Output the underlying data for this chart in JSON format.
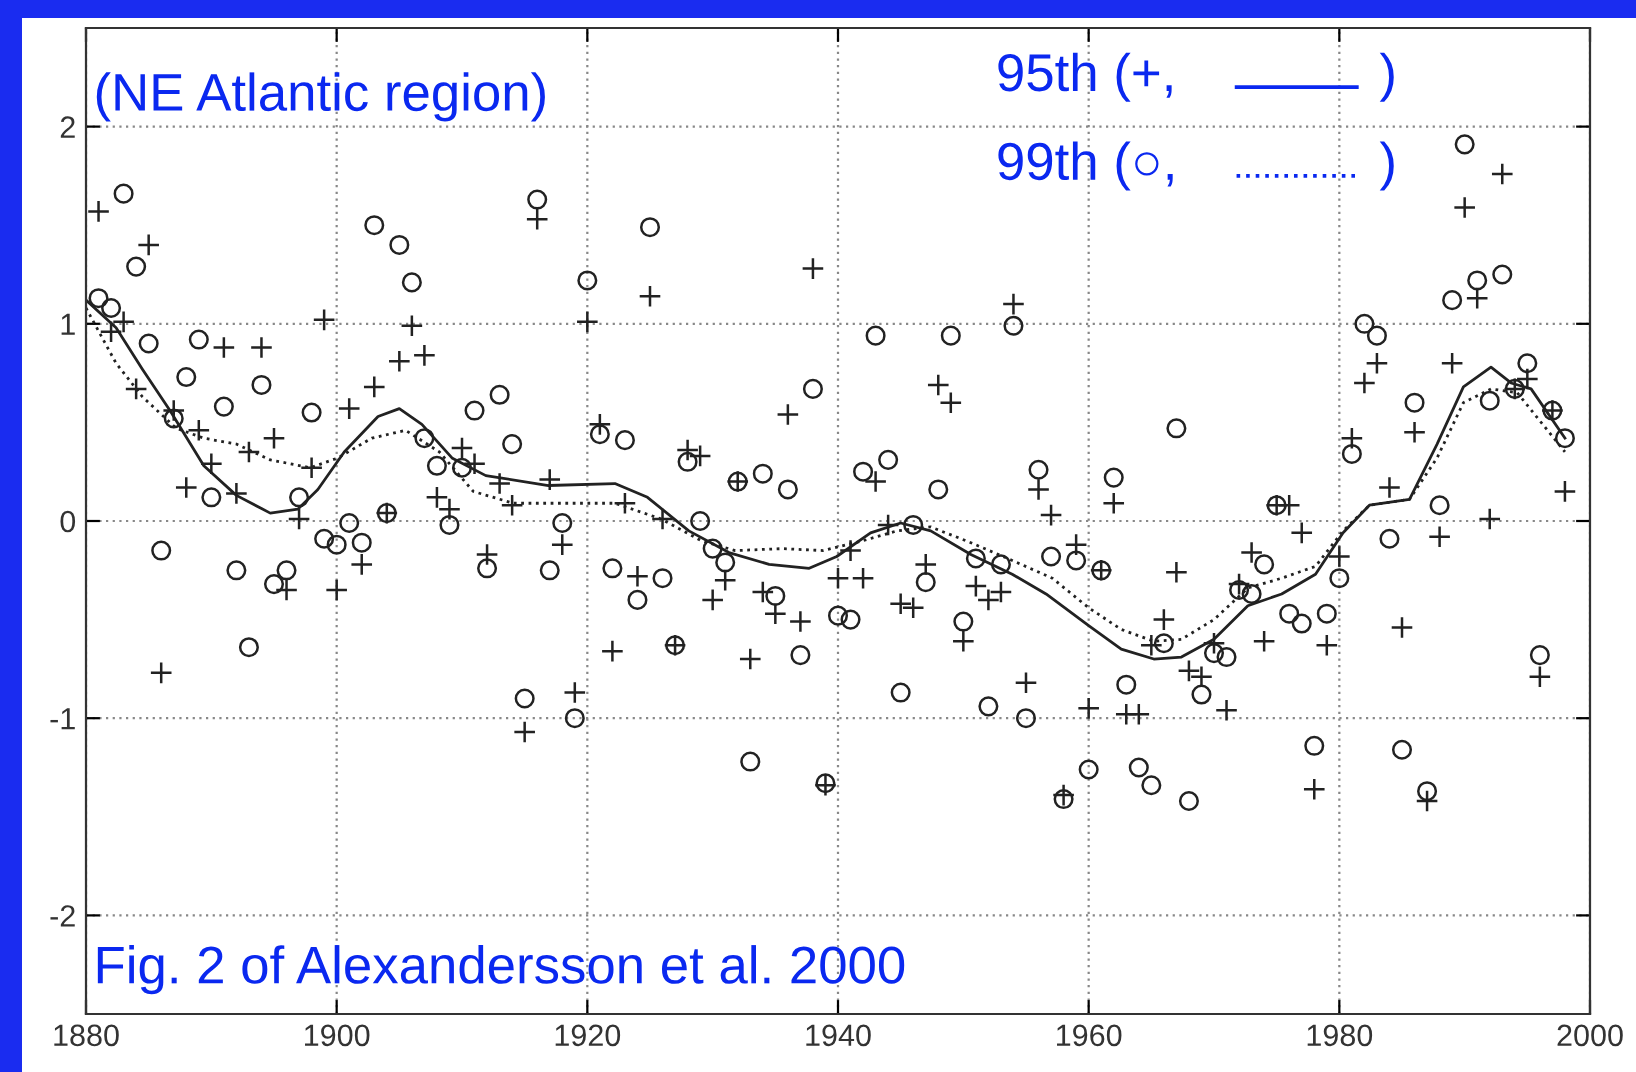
{
  "chart_data": {
    "type": "scatter",
    "xlim": [
      1880,
      2000
    ],
    "xticks": [
      1880,
      1900,
      1920,
      1940,
      1960,
      1980,
      2000
    ],
    "ylim": [
      -2.5,
      2.5
    ],
    "yticks": [
      -2,
      -1,
      0,
      1,
      2
    ],
    "grid": true,
    "annotations": [
      "(NE Atlantic region)",
      "95th (+,",
      ")",
      "99th (○,",
      ")",
      "Fig. 2 of Alexandersson et al. 2000"
    ],
    "series": [
      {
        "marker": "cross",
        "color": "#222222",
        "x": [
          1881,
          1882,
          1883,
          1884,
          1885,
          1886,
          1887,
          1888,
          1889,
          1890,
          1891,
          1892,
          1893,
          1894,
          1895,
          1896,
          1897,
          1898,
          1899,
          1900,
          1901,
          1902,
          1903,
          1904,
          1905,
          1906,
          1907,
          1908,
          1909,
          1910,
          1911,
          1912,
          1913,
          1914,
          1915,
          1916,
          1917,
          1918,
          1919,
          1920,
          1921,
          1922,
          1923,
          1924,
          1925,
          1926,
          1927,
          1928,
          1929,
          1930,
          1931,
          1932,
          1933,
          1934,
          1935,
          1936,
          1937,
          1938,
          1939,
          1940,
          1941,
          1942,
          1943,
          1944,
          1945,
          1946,
          1947,
          1948,
          1949,
          1950,
          1951,
          1952,
          1953,
          1954,
          1955,
          1956,
          1957,
          1958,
          1959,
          1960,
          1961,
          1962,
          1963,
          1964,
          1965,
          1966,
          1967,
          1968,
          1969,
          1970,
          1971,
          1972,
          1973,
          1974,
          1975,
          1976,
          1977,
          1978,
          1979,
          1980,
          1981,
          1982,
          1983,
          1984,
          1985,
          1986,
          1987,
          1988,
          1989,
          1990,
          1991,
          1992,
          1993,
          1994,
          1995,
          1996,
          1997,
          1998
        ],
        "values": [
          1.57,
          0.96,
          1.01,
          0.67,
          1.4,
          -0.77,
          0.56,
          0.17,
          0.46,
          0.29,
          0.88,
          0.14,
          0.35,
          0.88,
          0.42,
          -0.35,
          0.01,
          0.27,
          1.02,
          -0.35,
          0.57,
          -0.22,
          0.68,
          0.04,
          0.81,
          0.99,
          0.84,
          0.12,
          0.06,
          0.37,
          0.29,
          -0.17,
          0.19,
          0.08,
          -1.07,
          1.53,
          0.21,
          -0.12,
          -0.87,
          1.01,
          0.49,
          -0.66,
          0.09,
          -0.28,
          1.14,
          0.01,
          -0.63,
          0.36,
          0.33,
          -0.4,
          -0.3,
          0.2,
          -0.7,
          -0.36,
          -0.47,
          0.54,
          -0.51,
          1.28,
          -1.34,
          -0.29,
          -0.15,
          -0.29,
          0.2,
          -0.02,
          -0.42,
          -0.44,
          -0.22,
          0.69,
          0.6,
          -0.61,
          -0.33,
          -0.4,
          -0.36,
          1.1,
          -0.82,
          0.16,
          0.03,
          -1.39,
          -0.12,
          -0.95,
          -0.25,
          0.09,
          -0.98,
          -0.98,
          -0.63,
          -0.5,
          -0.26,
          -0.76,
          -0.79,
          -0.62,
          -0.96,
          -0.32,
          -0.16,
          -0.61,
          0.08,
          0.08,
          -0.06,
          -1.36,
          -0.63,
          -0.18,
          0.42,
          0.7,
          0.8,
          0.17,
          -0.54,
          0.45,
          -1.42,
          -0.08,
          0.8,
          1.59,
          1.13,
          0.01,
          1.76,
          0.67,
          0.72,
          -0.79,
          0.56,
          0.15
        ]
      },
      {
        "marker": "circle",
        "color": "#222222",
        "x": [
          1881,
          1882,
          1883,
          1884,
          1885,
          1886,
          1887,
          1888,
          1889,
          1890,
          1891,
          1892,
          1893,
          1894,
          1895,
          1896,
          1897,
          1898,
          1899,
          1900,
          1901,
          1902,
          1903,
          1904,
          1905,
          1906,
          1907,
          1908,
          1909,
          1910,
          1911,
          1912,
          1913,
          1914,
          1915,
          1916,
          1917,
          1918,
          1919,
          1920,
          1921,
          1922,
          1923,
          1924,
          1925,
          1926,
          1927,
          1928,
          1929,
          1930,
          1931,
          1932,
          1933,
          1934,
          1935,
          1936,
          1937,
          1938,
          1939,
          1940,
          1941,
          1942,
          1943,
          1944,
          1945,
          1946,
          1947,
          1948,
          1949,
          1950,
          1951,
          1952,
          1953,
          1954,
          1955,
          1956,
          1957,
          1958,
          1959,
          1960,
          1961,
          1962,
          1963,
          1964,
          1965,
          1966,
          1967,
          1968,
          1969,
          1970,
          1971,
          1972,
          1973,
          1974,
          1975,
          1976,
          1977,
          1978,
          1979,
          1980,
          1981,
          1982,
          1983,
          1984,
          1985,
          1986,
          1987,
          1988,
          1989,
          1990,
          1991,
          1992,
          1993,
          1994,
          1995,
          1996,
          1997,
          1998
        ],
        "values": [
          1.13,
          1.08,
          1.66,
          1.29,
          0.9,
          -0.15,
          0.52,
          0.73,
          0.92,
          0.12,
          0.58,
          -0.25,
          -0.64,
          0.69,
          -0.32,
          -0.25,
          0.12,
          0.55,
          -0.09,
          -0.12,
          -0.01,
          -0.11,
          1.5,
          0.04,
          1.4,
          1.21,
          0.42,
          0.28,
          -0.02,
          0.27,
          0.56,
          -0.24,
          0.64,
          0.39,
          -0.9,
          1.63,
          -0.25,
          -0.01,
          -1.0,
          1.22,
          0.44,
          -0.24,
          0.41,
          -0.4,
          1.49,
          -0.29,
          -0.63,
          0.3,
          0.0,
          -0.14,
          -0.21,
          0.2,
          -1.22,
          0.24,
          -0.38,
          0.16,
          -0.68,
          0.67,
          -1.33,
          -0.48,
          -0.5,
          0.25,
          0.94,
          0.31,
          -0.87,
          -0.02,
          -0.31,
          0.16,
          0.94,
          -0.51,
          -0.19,
          -0.94,
          -0.22,
          0.99,
          -1.0,
          0.26,
          -0.18,
          -1.41,
          -0.2,
          -1.26,
          -0.25,
          0.22,
          -0.83,
          -1.25,
          -1.34,
          -0.62,
          0.47,
          -1.42,
          -0.88,
          -0.67,
          -0.69,
          -0.35,
          -0.37,
          -0.22,
          0.08,
          -0.47,
          -0.52,
          -1.14,
          -0.47,
          -0.29,
          0.34,
          1.0,
          0.94,
          -0.09,
          -1.16,
          0.6,
          -1.37,
          0.08,
          1.12,
          1.91,
          1.22,
          0.61,
          1.25,
          0.67,
          0.8,
          -0.68,
          0.56,
          0.42
        ]
      },
      {
        "type": "line",
        "line_style": "solid",
        "color": "#222222",
        "x": [
          1880,
          1882.4,
          1884.5,
          1886.7,
          1889.4,
          1892,
          1894.7,
          1896.9,
          1898.5,
          1900.6,
          1903.3,
          1905,
          1906.8,
          1909.2,
          1911.9,
          1916.9,
          1922.2,
          1924.8,
          1928.1,
          1931.3,
          1934.5,
          1937.7,
          1939.9,
          1942.6,
          1945,
          1947.4,
          1950.6,
          1953.9,
          1956.6,
          1960,
          1962.6,
          1965.2,
          1967.4,
          1970,
          1972.7,
          1975.4,
          1978.1,
          1980.3,
          1982.4,
          1985.6,
          1987.8,
          1989.9,
          1992.1,
          1993.7,
          1995.3,
          1998
        ],
        "values": [
          1.12,
          0.98,
          0.77,
          0.56,
          0.28,
          0.13,
          0.04,
          0.06,
          0.16,
          0.35,
          0.53,
          0.57,
          0.49,
          0.32,
          0.23,
          0.18,
          0.19,
          0.12,
          -0.05,
          -0.16,
          -0.22,
          -0.24,
          -0.18,
          -0.06,
          -0.01,
          -0.05,
          -0.17,
          -0.27,
          -0.37,
          -0.53,
          -0.65,
          -0.7,
          -0.69,
          -0.6,
          -0.43,
          -0.37,
          -0.27,
          -0.06,
          0.08,
          0.11,
          0.39,
          0.68,
          0.78,
          0.7,
          0.67,
          0.42
        ]
      },
      {
        "type": "line",
        "line_style": "dotted",
        "color": "#222222",
        "x": [
          1880,
          1882.4,
          1884.5,
          1887.2,
          1889.4,
          1892,
          1894.7,
          1897.9,
          1900.1,
          1902.8,
          1905.5,
          1908.2,
          1910.9,
          1914.1,
          1916.9,
          1922.2,
          1925.9,
          1929.1,
          1931.8,
          1935.6,
          1938.8,
          1942,
          1944.7,
          1947.4,
          1950.6,
          1953.9,
          1957.1,
          1960,
          1962.6,
          1965.2,
          1967.4,
          1970,
          1972.7,
          1975.4,
          1978.1,
          1980.3,
          1982.4,
          1985.6,
          1987.8,
          1989.9,
          1992.1,
          1994.2,
          1998
        ],
        "values": [
          1.08,
          0.8,
          0.63,
          0.47,
          0.42,
          0.39,
          0.31,
          0.27,
          0.32,
          0.42,
          0.46,
          0.35,
          0.15,
          0.09,
          0.09,
          0.09,
          0.01,
          -0.1,
          -0.15,
          -0.14,
          -0.15,
          -0.1,
          -0.05,
          -0.03,
          -0.11,
          -0.2,
          -0.29,
          -0.44,
          -0.55,
          -0.61,
          -0.6,
          -0.5,
          -0.34,
          -0.29,
          -0.23,
          -0.05,
          0.08,
          0.11,
          0.32,
          0.6,
          0.67,
          0.65,
          0.35
        ]
      }
    ]
  }
}
